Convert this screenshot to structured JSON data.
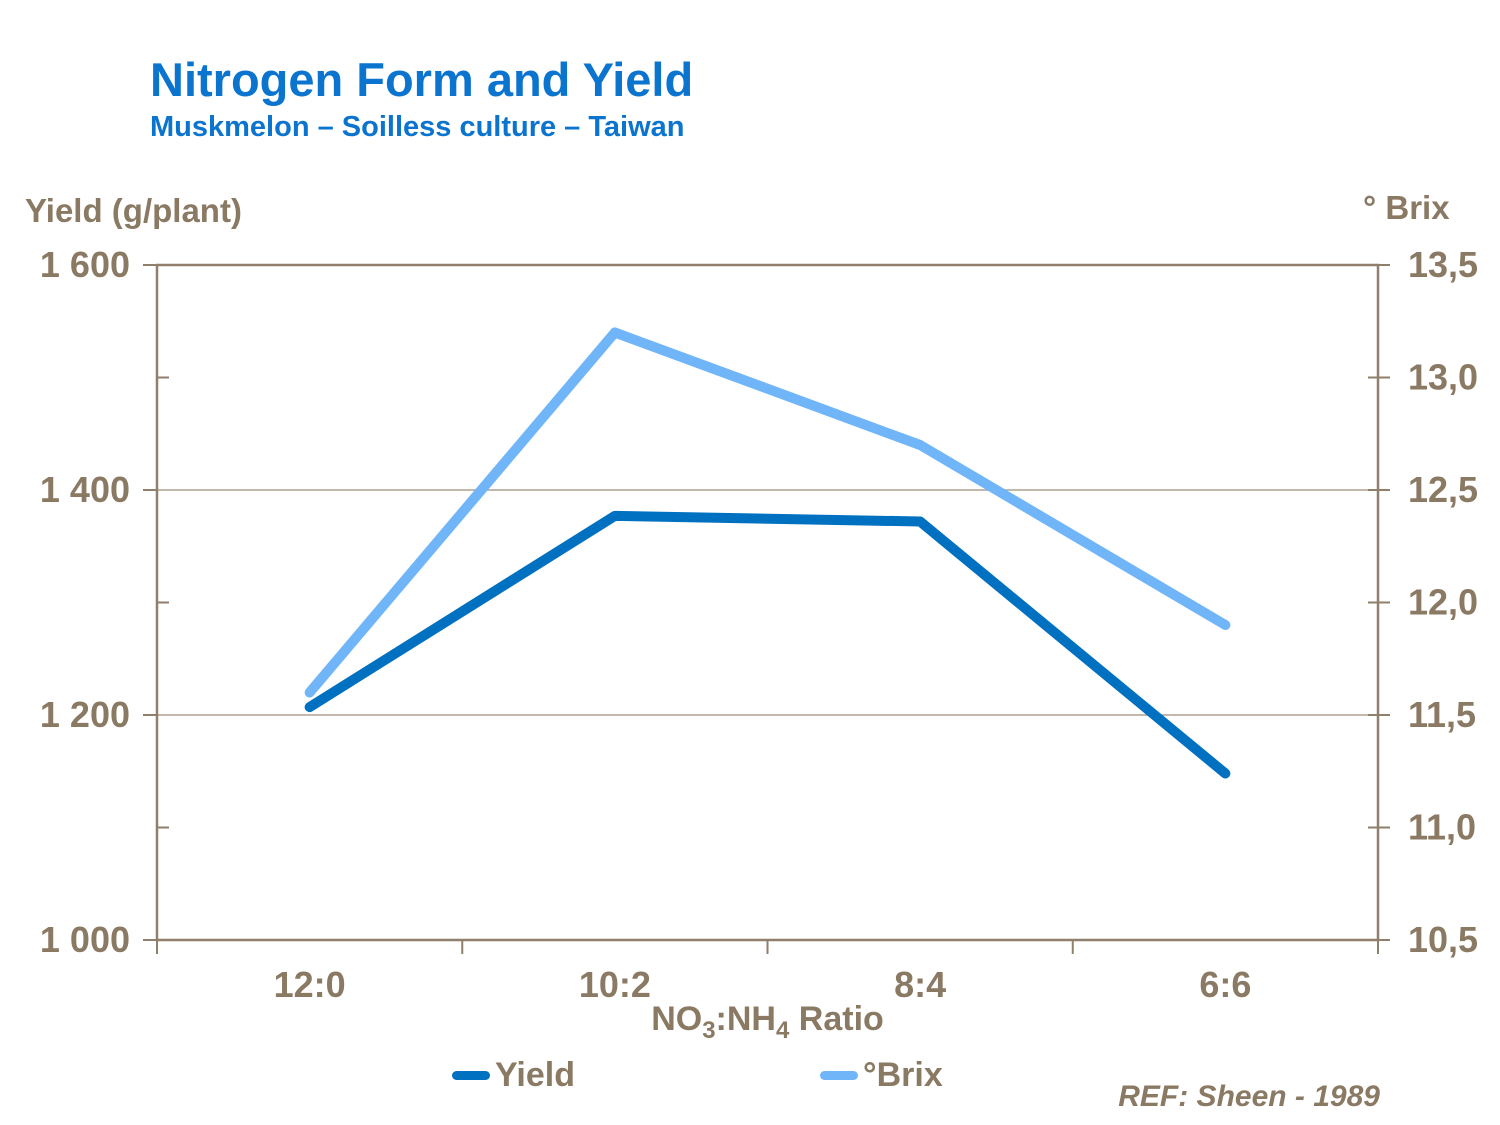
{
  "header": {
    "title": "Nitrogen Form and Yield",
    "subtitle": "Muskmelon – Soilless culture – Taiwan"
  },
  "colors": {
    "title_blue": "#0b74ce",
    "yield_line": "#0070c0",
    "brix_line": "#6fb5f8",
    "axis_text": "#8a7963",
    "gridline": "#ada091",
    "border": "#8f7f6b"
  },
  "chart_data": {
    "type": "line",
    "title": "Nitrogen Form and Yield",
    "subtitle": "Muskmelon – Soilless culture – Taiwan",
    "categories": [
      "12:0",
      "10:2",
      "8:4",
      "6:6"
    ],
    "series": [
      {
        "name": "Yield",
        "axis": "left",
        "color_key": "yield_line",
        "values": [
          1207,
          1377,
          1372,
          1148
        ]
      },
      {
        "name": "°Brix",
        "axis": "right",
        "color_key": "brix_line",
        "values": [
          11.6,
          13.2,
          12.7,
          11.9
        ]
      }
    ],
    "left_axis": {
      "title": "Yield (g/plant)",
      "min": 1000,
      "max": 1600,
      "tick_values": [
        1600,
        1400,
        1200,
        1000
      ],
      "tick_labels": [
        "1 600",
        "1 400",
        "1 200",
        "1 000"
      ],
      "minor_tick_values": [
        1500,
        1300,
        1100
      ]
    },
    "right_axis": {
      "title": "° Brix",
      "min": 10.5,
      "max": 13.5,
      "tick_values": [
        13.5,
        13.0,
        12.5,
        12.0,
        11.5,
        11.0,
        10.5
      ],
      "tick_labels": [
        "13,5",
        "13,0",
        "12,5",
        "12,0",
        "11,5",
        "11,0",
        "10,5"
      ]
    },
    "x_axis": {
      "title_parts": {
        "p1": "NO",
        "sub1": "3",
        "p2": ":NH",
        "sub2": "4",
        "p3": " Ratio"
      }
    },
    "grid": "horizontal-major",
    "legend_position": "bottom"
  },
  "legend": {
    "items": [
      {
        "label": "Yield",
        "color_key": "yield_line"
      },
      {
        "label": "°Brix",
        "color_key": "brix_line"
      }
    ]
  },
  "footnote": "REF: Sheen - 1989"
}
